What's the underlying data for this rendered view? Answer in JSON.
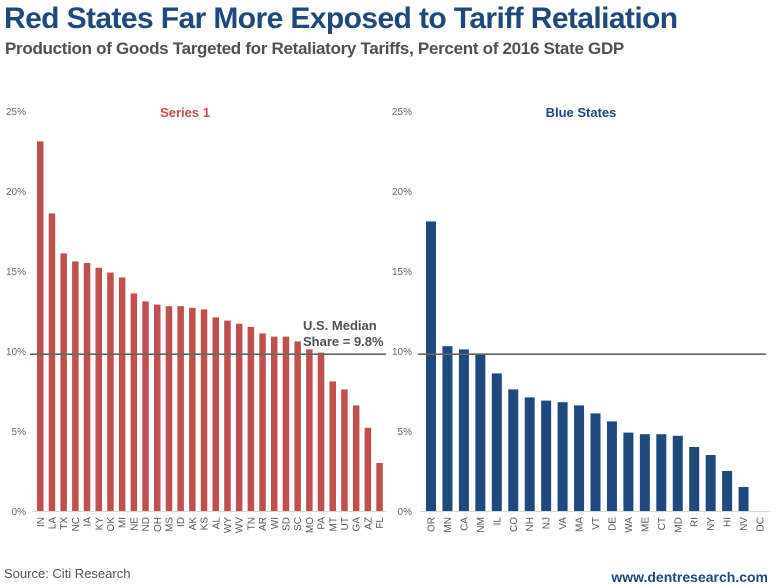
{
  "header": {
    "title": "Red States Far More Exposed to Tariff Retaliation",
    "subtitle": "Production of Goods Targeted for Retaliatory Tariffs, Percent of 2016 State GDP"
  },
  "footer": {
    "source": "Source: Citi Research",
    "website": "www.dentresearch.com"
  },
  "colors": {
    "red": "#c0504d",
    "blue": "#1f497d",
    "median_line": "#666666",
    "axis": "#d9d9d9"
  },
  "chart_data": [
    {
      "type": "bar",
      "title": "Series 1",
      "xlabel": "",
      "ylabel": "",
      "ylim": [
        0,
        25
      ],
      "yticks": [
        "0%",
        "5%",
        "10%",
        "15%",
        "20%",
        "25%"
      ],
      "grid": false,
      "color": "#c0504d",
      "categories": [
        "IN",
        "LA",
        "TX",
        "NC",
        "IA",
        "KY",
        "OK",
        "MI",
        "NE",
        "ND",
        "OH",
        "MS",
        "ID",
        "AK",
        "KS",
        "AL",
        "WY",
        "WV",
        "TN",
        "AR",
        "WI",
        "SD",
        "SC",
        "MO",
        "PA",
        "MT",
        "UT",
        "GA",
        "AZ",
        "FL"
      ],
      "values": [
        23.1,
        18.6,
        16.1,
        15.6,
        15.5,
        15.2,
        14.9,
        14.6,
        13.6,
        13.1,
        12.9,
        12.8,
        12.8,
        12.7,
        12.6,
        12.1,
        11.9,
        11.7,
        11.5,
        11.1,
        10.9,
        10.9,
        10.6,
        10.1,
        9.9,
        8.1,
        7.6,
        6.6,
        5.2,
        3.0
      ],
      "reference_line": {
        "value": 9.8,
        "label_line1": "U.S. Median",
        "label_line2": "Share = 9.8%"
      }
    },
    {
      "type": "bar",
      "title": "Blue States",
      "xlabel": "",
      "ylabel": "",
      "ylim": [
        0,
        25
      ],
      "yticks": [
        "0%",
        "5%",
        "10%",
        "15%",
        "20%",
        "25%"
      ],
      "grid": false,
      "color": "#1f497d",
      "categories": [
        "OR",
        "MN",
        "CA",
        "NM",
        "IL",
        "CO",
        "NH",
        "NJ",
        "VA",
        "MA",
        "VT",
        "DE",
        "WA",
        "ME",
        "CT",
        "MD",
        "RI",
        "NY",
        "HI",
        "NV",
        "DC"
      ],
      "values": [
        18.1,
        10.3,
        10.1,
        9.8,
        8.6,
        7.6,
        7.1,
        6.9,
        6.8,
        6.6,
        6.1,
        5.6,
        4.9,
        4.8,
        4.8,
        4.7,
        4.0,
        3.5,
        2.5,
        1.5,
        0.0
      ],
      "reference_line": {
        "value": 9.8
      }
    }
  ]
}
